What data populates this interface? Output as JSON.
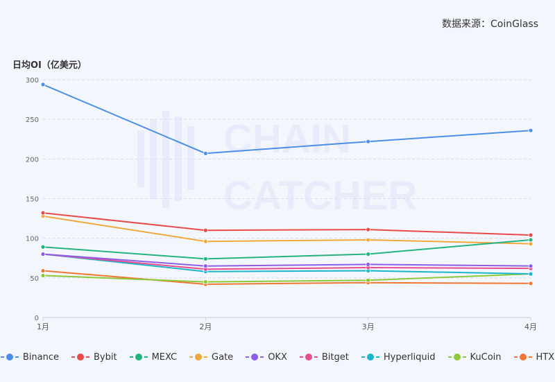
{
  "source": "数据来源：CoinGlass",
  "watermark": {
    "line1": "CHAIN",
    "line2": "CATCHER"
  },
  "chart_data": {
    "type": "line",
    "title": "",
    "ylabel": "日均OI（亿美元）",
    "xlabel": "",
    "categories": [
      "1月",
      "2月",
      "3月",
      "4月"
    ],
    "ylim": [
      0,
      300
    ],
    "yticks": [
      0,
      50,
      100,
      150,
      200,
      250,
      300
    ],
    "grid": true,
    "legend_position": "bottom",
    "series": [
      {
        "name": "Binance",
        "color": "#4a8fe7",
        "values": [
          294,
          207,
          222,
          236
        ]
      },
      {
        "name": "Bybit",
        "color": "#e84a4a",
        "values": [
          132,
          110,
          111,
          104
        ]
      },
      {
        "name": "MEXC",
        "color": "#24b27e",
        "values": [
          89,
          74,
          80,
          98
        ]
      },
      {
        "name": "Gate",
        "color": "#f0a83b",
        "values": [
          128,
          96,
          98,
          93
        ]
      },
      {
        "name": "OKX",
        "color": "#8b5de8",
        "values": [
          80,
          65,
          67,
          65
        ]
      },
      {
        "name": "Bitget",
        "color": "#e84c8e",
        "values": [
          80,
          61,
          63,
          62
        ]
      },
      {
        "name": "Hyperliquid",
        "color": "#1bb5c9",
        "values": [
          80,
          58,
          59,
          55
        ]
      },
      {
        "name": "KuCoin",
        "color": "#8cc83a",
        "values": [
          53,
          45,
          47,
          55
        ]
      },
      {
        "name": "HTX",
        "color": "#ef7731",
        "values": [
          59,
          42,
          44,
          43
        ]
      }
    ]
  }
}
